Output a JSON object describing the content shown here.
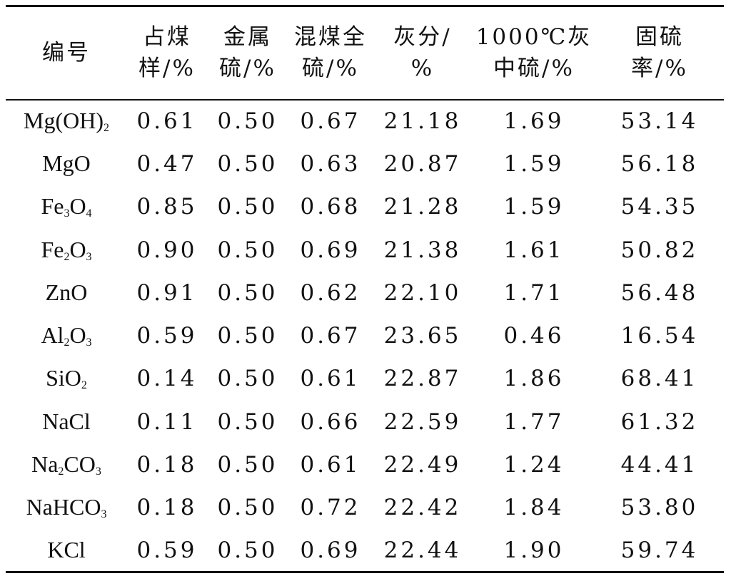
{
  "table": {
    "headers": [
      "编号",
      "占煤\n样/%",
      "金属\n硫/%",
      "混煤全\n硫/%",
      "灰分/\n%",
      "1000℃灰\n中硫/%",
      "固硫\n率/%"
    ],
    "rows": [
      {
        "id": "Mg(OH)2",
        "id_parts": [
          {
            "t": "Mg(OH)"
          },
          {
            "t": "2",
            "sub": true
          }
        ],
        "values": [
          "0.61",
          "0.50",
          "0.67",
          "21.18",
          "1.69",
          "53.14"
        ]
      },
      {
        "id": "MgO",
        "id_parts": [
          {
            "t": "MgO"
          }
        ],
        "values": [
          "0.47",
          "0.50",
          "0.63",
          "20.87",
          "1.59",
          "56.18"
        ]
      },
      {
        "id": "Fe3O4",
        "id_parts": [
          {
            "t": "Fe"
          },
          {
            "t": "3",
            "sub": true
          },
          {
            "t": "O"
          },
          {
            "t": "4",
            "sub": true
          }
        ],
        "values": [
          "0.85",
          "0.50",
          "0.68",
          "21.28",
          "1.59",
          "54.35"
        ]
      },
      {
        "id": "Fe2O3",
        "id_parts": [
          {
            "t": "Fe"
          },
          {
            "t": "2",
            "sub": true
          },
          {
            "t": "O"
          },
          {
            "t": "3",
            "sub": true
          }
        ],
        "values": [
          "0.90",
          "0.50",
          "0.69",
          "21.38",
          "1.61",
          "50.82"
        ]
      },
      {
        "id": "ZnO",
        "id_parts": [
          {
            "t": "ZnO"
          }
        ],
        "values": [
          "0.91",
          "0.50",
          "0.62",
          "22.10",
          "1.71",
          "56.48"
        ]
      },
      {
        "id": "Al2O3",
        "id_parts": [
          {
            "t": "Al"
          },
          {
            "t": "2",
            "sub": true
          },
          {
            "t": "O"
          },
          {
            "t": "3",
            "sub": true
          }
        ],
        "values": [
          "0.59",
          "0.50",
          "0.67",
          "23.65",
          "0.46",
          "16.54"
        ]
      },
      {
        "id": "SiO2",
        "id_parts": [
          {
            "t": "SiO"
          },
          {
            "t": "2",
            "sub": true
          }
        ],
        "values": [
          "0.14",
          "0.50",
          "0.61",
          "22.87",
          "1.86",
          "68.41"
        ]
      },
      {
        "id": "NaCl",
        "id_parts": [
          {
            "t": "NaCl"
          }
        ],
        "values": [
          "0.11",
          "0.50",
          "0.66",
          "22.59",
          "1.77",
          "61.32"
        ]
      },
      {
        "id": "Na2CO3",
        "id_parts": [
          {
            "t": "Na"
          },
          {
            "t": "2",
            "sub": true
          },
          {
            "t": "CO"
          },
          {
            "t": "3",
            "sub": true
          }
        ],
        "values": [
          "0.18",
          "0.50",
          "0.61",
          "22.49",
          "1.24",
          "44.41"
        ]
      },
      {
        "id": "NaHCO3",
        "id_parts": [
          {
            "t": "NaHCO"
          },
          {
            "t": "3",
            "sub": true
          }
        ],
        "values": [
          "0.18",
          "0.50",
          "0.72",
          "22.42",
          "1.84",
          "53.80"
        ]
      },
      {
        "id": "KCl",
        "id_parts": [
          {
            "t": "KCl"
          }
        ],
        "values": [
          "0.59",
          "0.50",
          "0.69",
          "22.44",
          "1.90",
          "59.74"
        ]
      }
    ]
  }
}
